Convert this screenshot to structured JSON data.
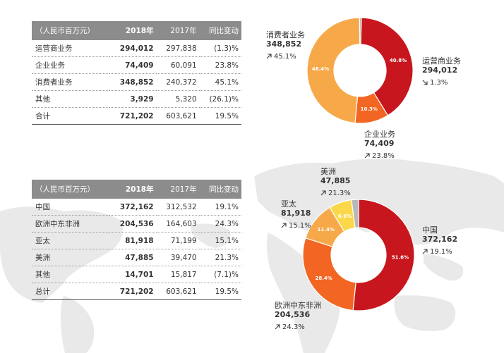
{
  "table_segment": {
    "header": {
      "col0": "（人民币百万元）",
      "col1": "2018年",
      "col2": "2017年",
      "col3": "同比变动"
    },
    "rows": [
      {
        "name": "运营商业务",
        "y2018": "294,012",
        "y2017": "297,838",
        "change": "(1.3)%"
      },
      {
        "name": "企业业务",
        "y2018": "74,409",
        "y2017": "60,091",
        "change": "23.8%"
      },
      {
        "name": "消费者业务",
        "y2018": "348,852",
        "y2017": "240,372",
        "change": "45.1%"
      },
      {
        "name": "其他",
        "y2018": "3,929",
        "y2017": "5,320",
        "change": "(26.1)%"
      },
      {
        "name": "合计",
        "y2018": "721,202",
        "y2017": "603,621",
        "change": "19.5%"
      }
    ]
  },
  "table_region": {
    "header": {
      "col0": "（人民币百万元）",
      "col1": "2018年",
      "col2": "2017年",
      "col3": "同比变动"
    },
    "rows": [
      {
        "name": "中国",
        "y2018": "372,162",
        "y2017": "312,532",
        "change": "19.1%"
      },
      {
        "name": "欧洲中东非洲",
        "y2018": "204,536",
        "y2017": "164,603",
        "change": "24.3%"
      },
      {
        "name": "亚太",
        "y2018": "81,918",
        "y2017": "71,199",
        "change": "15.1%"
      },
      {
        "name": "美洲",
        "y2018": "47,885",
        "y2017": "39,470",
        "change": "21.3%"
      },
      {
        "name": "其他",
        "y2018": "14,701",
        "y2017": "15,817",
        "change": "(7.1)%"
      },
      {
        "name": "总计",
        "y2018": "721,202",
        "y2017": "603,621",
        "change": "19.5%"
      }
    ]
  },
  "chart_data": [
    {
      "type": "pie",
      "donut": true,
      "segments": [
        {
          "name": "运营商业务",
          "value": 294012,
          "percent_label": "40.8%",
          "change": "1.3%",
          "direction": "down",
          "color": "#c8161e"
        },
        {
          "name": "企业业务",
          "value": 74409,
          "percent_label": "10.3%",
          "change": "23.8%",
          "direction": "up",
          "color": "#f26522"
        },
        {
          "name": "消费者业务",
          "value": 348852,
          "percent_label": "48.4%",
          "change": "45.1%",
          "direction": "up",
          "color": "#f7a94a"
        },
        {
          "name": "其他",
          "value": 3929,
          "percent_label": "",
          "change": "",
          "direction": "",
          "color": "#b8b8b8"
        }
      ]
    },
    {
      "type": "pie",
      "donut": true,
      "segments": [
        {
          "name": "中国",
          "value": 372162,
          "percent_label": "51.6%",
          "change": "19.1%",
          "direction": "up",
          "color": "#c8161e"
        },
        {
          "name": "欧洲中东非洲",
          "value": 204536,
          "percent_label": "28.4%",
          "change": "24.3%",
          "direction": "up",
          "color": "#f26522"
        },
        {
          "name": "亚太",
          "value": 81918,
          "percent_label": "11.4%",
          "change": "15.1%",
          "direction": "up",
          "color": "#f7a94a"
        },
        {
          "name": "美洲",
          "value": 47885,
          "percent_label": "6.6%",
          "change": "21.3%",
          "direction": "up",
          "color": "#fbd84a"
        },
        {
          "name": "其他",
          "value": 14701,
          "percent_label": "",
          "change": "",
          "direction": "",
          "color": "#b8b8b8"
        }
      ]
    }
  ]
}
